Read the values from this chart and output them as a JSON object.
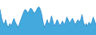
{
  "values": [
    68,
    62,
    58,
    56,
    60,
    56,
    54,
    57,
    55,
    58,
    61,
    58,
    56,
    54,
    57,
    60,
    63,
    66,
    68,
    67,
    65,
    67,
    69,
    68,
    66,
    65,
    67,
    69,
    70,
    68,
    64,
    58,
    54,
    57,
    60,
    56,
    58,
    63,
    59,
    55,
    57,
    60,
    58,
    55,
    57,
    59,
    56,
    58,
    62,
    60,
    57,
    59,
    61,
    59,
    56,
    58,
    60,
    58,
    60,
    64,
    58,
    55,
    57,
    55,
    58,
    56,
    58,
    62,
    59,
    56
  ],
  "line_color": "#2288cc",
  "fill_color": "#44aadd",
  "background_color": "#ffffff",
  "ylim_min": 48,
  "ylim_max": 76
}
